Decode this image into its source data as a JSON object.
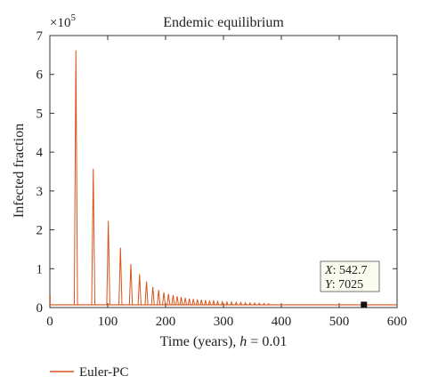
{
  "chart_data": {
    "type": "line",
    "title": "Endemic equilibrium",
    "xlabel_prefix": "Time (years), ",
    "xlabel_italic": "h",
    "xlabel_suffix": " = 0.01",
    "ylabel": "Infected fraction",
    "y_multiplier": "×10",
    "y_exponent": "5",
    "xlim": [
      0,
      600
    ],
    "ylim": [
      0,
      7
    ],
    "x_ticks": [
      0,
      100,
      200,
      300,
      400,
      500,
      600
    ],
    "y_ticks": [
      0,
      1,
      2,
      3,
      4,
      5,
      6,
      7
    ],
    "series": [
      {
        "name": "Euler-PC",
        "color": "#d9541a",
        "baseline": 0.0703,
        "initial_spike": 0.35,
        "peaks_x": [
          45,
          75,
          101,
          122,
          140,
          155,
          167,
          178,
          188,
          197,
          205,
          213,
          220,
          227,
          234,
          241,
          248,
          255,
          262,
          269,
          276,
          283,
          290,
          298,
          306,
          314,
          322,
          330,
          338,
          346,
          354,
          362,
          370,
          378
        ],
        "peaks_y": [
          6.62,
          3.57,
          2.23,
          1.54,
          1.12,
          0.86,
          0.67,
          0.53,
          0.45,
          0.39,
          0.35,
          0.32,
          0.29,
          0.27,
          0.25,
          0.23,
          0.22,
          0.21,
          0.2,
          0.19,
          0.18,
          0.17,
          0.16,
          0.15,
          0.145,
          0.14,
          0.135,
          0.13,
          0.125,
          0.12,
          0.115,
          0.11,
          0.105,
          0.1
        ]
      }
    ],
    "datatip": {
      "x_label": "X",
      "x_value": ": 542.7",
      "y_label": "Y",
      "y_value": ": 7025",
      "x": 542.7,
      "y": 0.07025
    },
    "legend_placement": "bottom-left",
    "grid": false
  }
}
